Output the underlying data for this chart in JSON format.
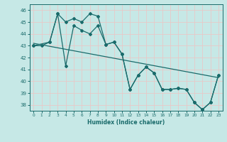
{
  "xlabel": "Humidex (Indice chaleur)",
  "xlim": [
    -0.5,
    23.5
  ],
  "ylim": [
    37.5,
    46.5
  ],
  "yticks": [
    38,
    39,
    40,
    41,
    42,
    43,
    44,
    45,
    46
  ],
  "xticks": [
    0,
    1,
    2,
    3,
    4,
    5,
    6,
    7,
    8,
    9,
    10,
    11,
    12,
    13,
    14,
    15,
    16,
    17,
    18,
    19,
    20,
    21,
    22,
    23
  ],
  "bg_color": "#c6e8e6",
  "grid_color": "#e8c8c8",
  "line_color": "#1a6b6b",
  "line1_x": [
    0,
    1,
    2,
    3,
    4,
    5,
    6,
    7,
    8,
    9,
    10,
    11,
    12,
    13,
    14,
    15,
    16,
    17,
    18,
    19,
    20,
    21,
    22,
    23
  ],
  "line1_y": [
    43.0,
    43.0,
    43.3,
    45.7,
    45.0,
    45.3,
    45.0,
    45.7,
    45.5,
    43.1,
    43.3,
    42.3,
    39.3,
    40.5,
    41.2,
    40.7,
    39.3,
    39.3,
    39.4,
    39.3,
    38.2,
    37.6,
    38.2,
    40.5
  ],
  "line2_x": [
    0,
    2,
    3,
    4,
    5,
    6,
    7,
    8,
    9,
    10,
    11,
    12,
    13,
    14,
    15,
    16,
    17,
    18,
    19,
    20,
    21,
    22,
    23
  ],
  "line2_y": [
    43.0,
    43.3,
    45.7,
    41.3,
    44.7,
    44.3,
    44.0,
    44.7,
    43.1,
    43.3,
    42.3,
    39.3,
    40.5,
    41.2,
    40.7,
    39.3,
    39.3,
    39.4,
    39.3,
    38.2,
    37.6,
    38.2,
    40.5
  ],
  "line3_x": [
    0,
    23
  ],
  "line3_y": [
    43.2,
    40.3
  ]
}
